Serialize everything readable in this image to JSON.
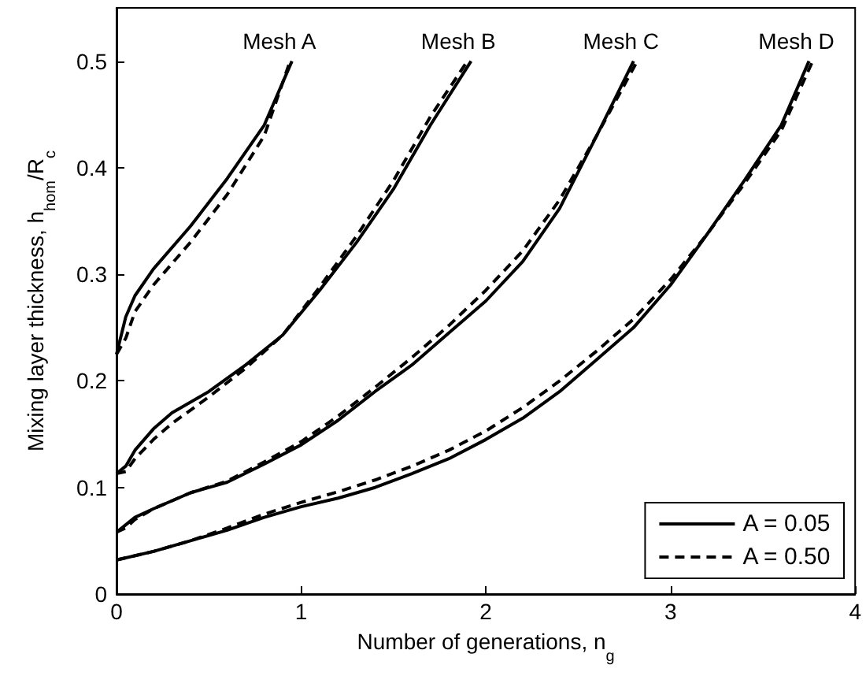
{
  "chart_data": {
    "type": "line",
    "xlabel": "Number of generations, n$_{g}$",
    "ylabel": "Mixing layer thickness, h$_{hom}$/R$_{c}$",
    "xlim": [
      0,
      4
    ],
    "xticks": [
      0,
      1,
      2,
      3,
      4
    ],
    "ylim": [
      0,
      0.55
    ],
    "yticks": [
      0,
      0.1,
      0.2,
      0.3,
      0.4,
      0.5
    ],
    "grid": false,
    "legend": "bottom right",
    "marker": "none",
    "annotations": [
      {
        "text": "Mesh A",
        "x": 0.95,
        "y": 0.5
      },
      {
        "text": "Mesh B",
        "x": 1.92,
        "y": 0.5
      },
      {
        "text": "Mesh C",
        "x": 2.8,
        "y": 0.5
      },
      {
        "text": "Mesh D",
        "x": 3.75,
        "y": 0.5
      }
    ],
    "series": [
      {
        "name": "A = 0.05",
        "color": "#000000",
        "line_style": "solid",
        "x": [
          0,
          0.05,
          0.1,
          0.2,
          0.4,
          0.6,
          0.8,
          0.95
        ],
        "values": [
          0.225,
          0.26,
          0.28,
          0.305,
          0.345,
          0.39,
          0.44,
          0.5
        ]
      },
      {
        "name": "A = 0.50",
        "color": "#000000",
        "line_style": "dashed",
        "x": [
          0,
          0.05,
          0.1,
          0.2,
          0.4,
          0.6,
          0.8,
          0.94
        ],
        "values": [
          0.225,
          0.24,
          0.265,
          0.29,
          0.33,
          0.375,
          0.43,
          0.5
        ]
      },
      {
        "color": "#000000",
        "line_style": "solid",
        "x": [
          0,
          0.05,
          0.1,
          0.2,
          0.3,
          0.5,
          0.7,
          0.9,
          1.1,
          1.3,
          1.5,
          1.7,
          1.92
        ],
        "values": [
          0.113,
          0.12,
          0.135,
          0.155,
          0.17,
          0.19,
          0.215,
          0.243,
          0.285,
          0.33,
          0.38,
          0.44,
          0.5
        ]
      },
      {
        "color": "#000000",
        "line_style": "dashed",
        "x": [
          0,
          0.05,
          0.1,
          0.2,
          0.3,
          0.5,
          0.7,
          0.9,
          1.1,
          1.3,
          1.5,
          1.7,
          1.9
        ],
        "values": [
          0.113,
          0.115,
          0.127,
          0.145,
          0.16,
          0.185,
          0.212,
          0.243,
          0.288,
          0.336,
          0.388,
          0.448,
          0.5
        ]
      },
      {
        "color": "#000000",
        "line_style": "solid",
        "x": [
          0,
          0.05,
          0.1,
          0.2,
          0.4,
          0.6,
          0.8,
          1.0,
          1.2,
          1.4,
          1.6,
          1.8,
          2.0,
          2.2,
          2.4,
          2.6,
          2.8
        ],
        "values": [
          0.058,
          0.065,
          0.072,
          0.08,
          0.095,
          0.105,
          0.122,
          0.14,
          0.163,
          0.19,
          0.215,
          0.245,
          0.275,
          0.312,
          0.362,
          0.43,
          0.5
        ]
      },
      {
        "color": "#000000",
        "line_style": "dashed",
        "x": [
          0,
          0.05,
          0.1,
          0.2,
          0.4,
          0.6,
          0.8,
          1.0,
          1.2,
          1.4,
          1.6,
          1.8,
          2.0,
          2.2,
          2.4,
          2.6,
          2.82
        ],
        "values": [
          0.058,
          0.062,
          0.07,
          0.08,
          0.095,
          0.106,
          0.124,
          0.143,
          0.167,
          0.194,
          0.222,
          0.252,
          0.285,
          0.322,
          0.37,
          0.43,
          0.5
        ]
      },
      {
        "color": "#000000",
        "line_style": "solid",
        "x": [
          0,
          0.2,
          0.4,
          0.6,
          0.8,
          1.0,
          1.2,
          1.4,
          1.6,
          1.8,
          2.0,
          2.2,
          2.4,
          2.6,
          2.8,
          3.0,
          3.2,
          3.4,
          3.6,
          3.75
        ],
        "values": [
          0.032,
          0.04,
          0.05,
          0.06,
          0.072,
          0.082,
          0.09,
          0.1,
          0.113,
          0.127,
          0.145,
          0.165,
          0.19,
          0.22,
          0.25,
          0.29,
          0.338,
          0.388,
          0.44,
          0.5
        ]
      },
      {
        "color": "#000000",
        "line_style": "dashed",
        "x": [
          0,
          0.2,
          0.4,
          0.6,
          0.8,
          1.0,
          1.2,
          1.4,
          1.6,
          1.8,
          2.0,
          2.2,
          2.4,
          2.6,
          2.8,
          3.0,
          3.2,
          3.4,
          3.6,
          3.77
        ],
        "values": [
          0.032,
          0.04,
          0.05,
          0.062,
          0.075,
          0.086,
          0.096,
          0.107,
          0.12,
          0.135,
          0.153,
          0.175,
          0.2,
          0.228,
          0.258,
          0.295,
          0.338,
          0.385,
          0.435,
          0.5
        ]
      }
    ]
  }
}
